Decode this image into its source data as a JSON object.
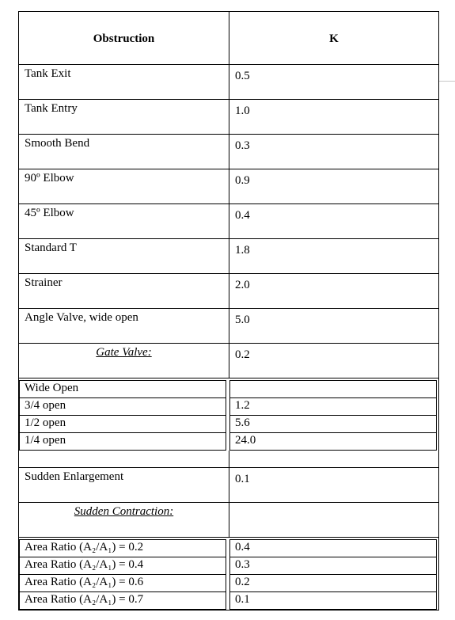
{
  "table": {
    "headers": [
      "Obstruction",
      "K"
    ],
    "rows": [
      {
        "obstruction": "Tank Exit",
        "k": "0.5"
      },
      {
        "obstruction": "Tank Entry",
        "k": "1.0"
      },
      {
        "obstruction": "Smooth Bend",
        "k": "0.3"
      },
      {
        "obstruction": "90º Elbow",
        "k": "0.9"
      },
      {
        "obstruction": "45º Elbow",
        "k": "0.4"
      },
      {
        "obstruction": "Standard T",
        "k": "1.8"
      },
      {
        "obstruction": "Strainer",
        "k": "2.0"
      },
      {
        "obstruction": "Angle Valve, wide open",
        "k": "5.0"
      },
      {
        "obstruction": "Gate Valve:",
        "k": "0.2"
      }
    ],
    "gate_valve": [
      {
        "label": "Wide Open",
        "k": ""
      },
      {
        "label": "3/4 open",
        "k": "1.2"
      },
      {
        "label": "1/2 open",
        "k": "5.6"
      },
      {
        "label": "1/4 open",
        "k": "24.0"
      }
    ],
    "sudden_enlargement": {
      "obstruction": "Sudden Enlargement",
      "k": "0.1"
    },
    "sudden_contraction_title": "Sudden Contraction:",
    "sudden_contraction": [
      {
        "label": "Area Ratio (A₂/A₁) = 0.2",
        "k": "0.4"
      },
      {
        "label": "Area Ratio (A₂/A₁) = 0.4",
        "k": "0.3"
      },
      {
        "label": "Area Ratio (A₂/A₁) = 0.6",
        "k": "0.2"
      },
      {
        "label": "Area Ratio (A₂/A₁) = 0.7",
        "k": "0.1"
      }
    ]
  }
}
